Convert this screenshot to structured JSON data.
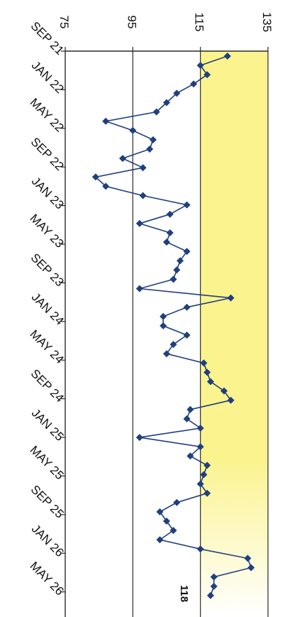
{
  "chart_data": {
    "type": "line",
    "orientation": "rotated 90 degrees clockwise",
    "y_ticks": [
      "75",
      "95",
      "115",
      "135"
    ],
    "ylim": [
      75,
      135
    ],
    "x_ticks": [
      "SEP 21",
      "JAN 22",
      "MAY 22",
      "SEP 22",
      "JAN 23",
      "MAY 23",
      "SEP 23",
      "JAN 24",
      "MAY 24",
      "SEP 24",
      "JAN 25",
      "MAY 25",
      "SEP 25",
      "JAN 26",
      "MAY 26"
    ],
    "series": [
      {
        "color": "#1f3f7f",
        "values": [
          123,
          115,
          117,
          113,
          108,
          105,
          102,
          87,
          95,
          101,
          100,
          92,
          98,
          84,
          87,
          98,
          111,
          106,
          97,
          106,
          105,
          111,
          109,
          108,
          107,
          97,
          124,
          111,
          104,
          104,
          111,
          107,
          105,
          116,
          117,
          118,
          122,
          124,
          112,
          111,
          115,
          97,
          115,
          112,
          117,
          116,
          115,
          117,
          108,
          103,
          105,
          107,
          103,
          115,
          129,
          130,
          119,
          119,
          118
        ]
      }
    ],
    "highlight_band": {
      "from": 115,
      "to": 135,
      "color_end": "#fbf38e",
      "color_start": "#ffffff"
    },
    "reference_lines": [
      95,
      115
    ],
    "last_value_label": "118",
    "grid": false
  }
}
